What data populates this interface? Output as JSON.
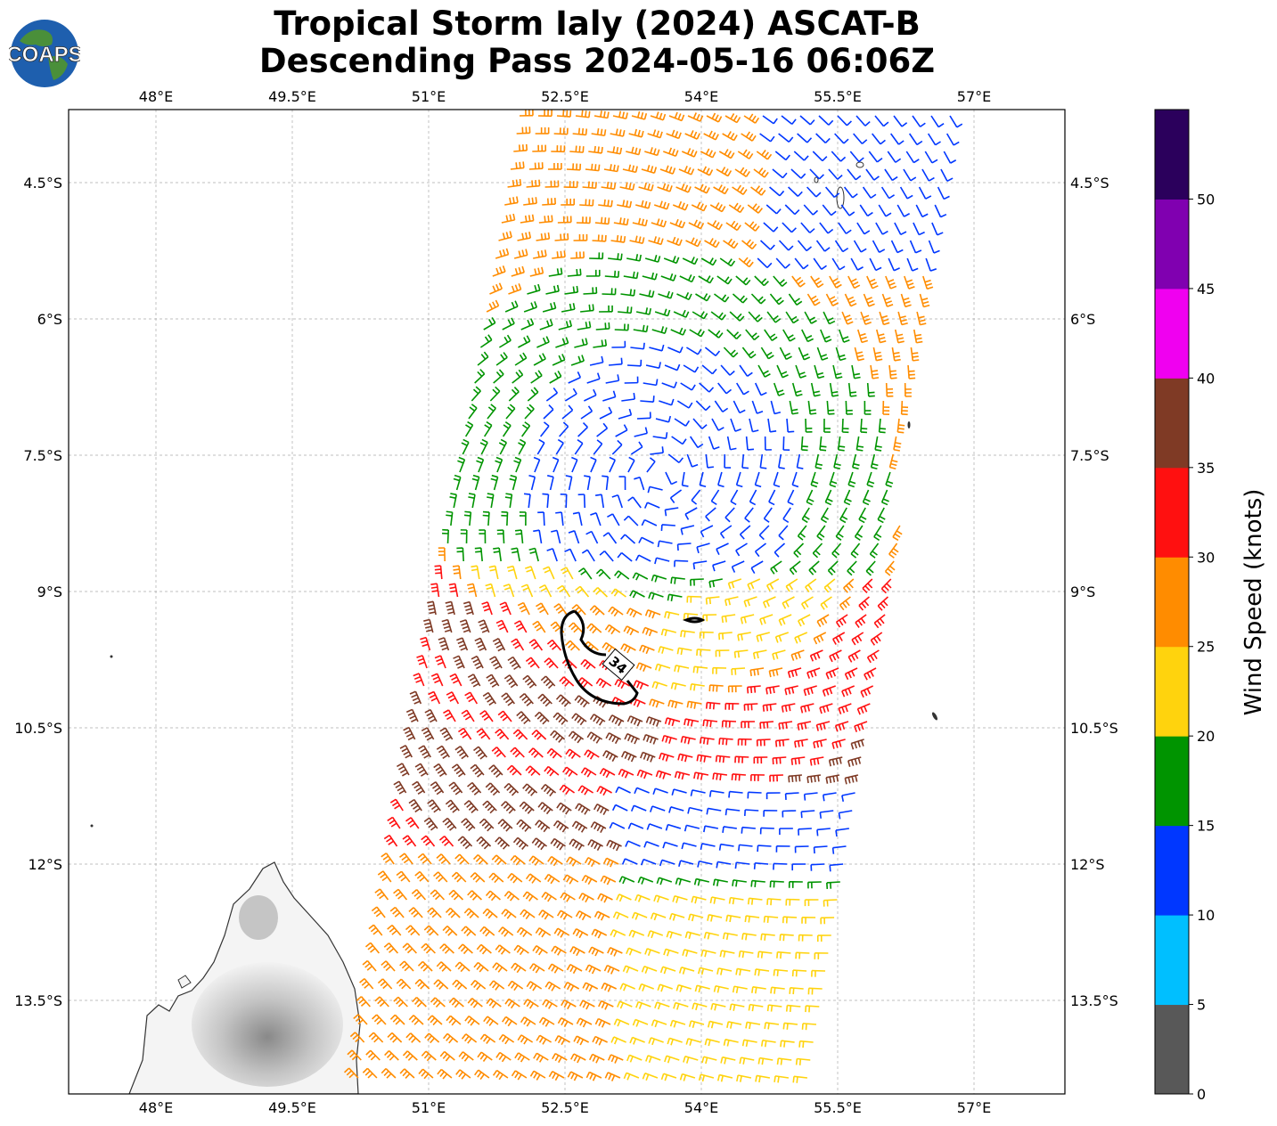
{
  "title_line1": "Tropical Storm Ialy (2024) ASCAT-B",
  "title_line2": "Descending Pass 2024-05-16 06:06Z",
  "logo_text": "COAPS",
  "lon_ticks": [
    "48°E",
    "49.5°E",
    "51°E",
    "52.5°E",
    "54°E",
    "55.5°E",
    "57°E"
  ],
  "lat_ticks": [
    "4.5°S",
    "6°S",
    "7.5°S",
    "9°S",
    "10.5°S",
    "12°S",
    "13.5°S"
  ],
  "colorbar": {
    "label": "Wind Speed (knots)",
    "ticks": [
      "0",
      "5",
      "10",
      "15",
      "20",
      "25",
      "30",
      "35",
      "40",
      "45",
      "50"
    ],
    "colors": [
      "#585858",
      "#00bfff",
      "#0037ff",
      "#009400",
      "#ffd30d",
      "#ff8c00",
      "#ff1010",
      "#7f3a25",
      "#f000f0",
      "#8000b0",
      "#2b005c"
    ]
  },
  "contour_label": "34",
  "chart_data": {
    "type": "wind-barb map",
    "lon_range": [
      47.0,
      57.95
    ],
    "lat_range": [
      -3.7,
      -14.5
    ],
    "storm_center": {
      "lon": 53.3,
      "lat": -7.9
    },
    "swath": {
      "west_edge_lon_north": 52.0,
      "west_edge_lon_south": 50.2,
      "east_edge_lon_north": 56.9,
      "east_edge_lon_south": 55.2
    },
    "contour_34kt_label": "34"
  }
}
